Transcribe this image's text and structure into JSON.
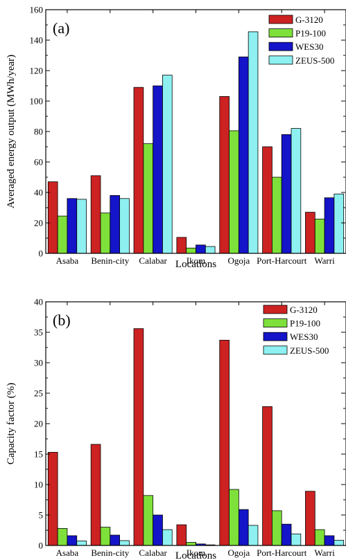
{
  "chart_data": [
    {
      "type": "bar",
      "panel_label": "(a)",
      "categories": [
        "Asaba",
        "Benin-city",
        "Calabar",
        "Ikom",
        "Ogoja",
        "Port-Harcourt",
        "Warri"
      ],
      "series": [
        {
          "name": "G-3120",
          "color": "#cc2222",
          "values": [
            47,
            51,
            109,
            10.5,
            103,
            70,
            27
          ]
        },
        {
          "name": "P19-100",
          "color": "#7ee03a",
          "values": [
            24.5,
            26.5,
            72,
            3.5,
            80.5,
            50,
            22.5
          ]
        },
        {
          "name": "WES30",
          "color": "#1414c8",
          "values": [
            36,
            38,
            110,
            5.5,
            129,
            78,
            36.5
          ]
        },
        {
          "name": "ZEUS-500",
          "color": "#8ef0f0",
          "values": [
            35.5,
            36,
            117,
            4.5,
            145.5,
            82,
            39
          ]
        }
      ],
      "xlabel": "Locations",
      "ylabel": "Averaged energy output (MWh/year)",
      "ylim": [
        0,
        160
      ],
      "yticks": [
        0,
        20,
        40,
        60,
        80,
        100,
        120,
        140,
        160
      ],
      "legend_position": "top-right",
      "grid": false
    },
    {
      "type": "bar",
      "panel_label": "(b)",
      "categories": [
        "Asaba",
        "Benin-city",
        "Calabar",
        "Ikom",
        "Ogoja",
        "Port-Harcourt",
        "Warri"
      ],
      "series": [
        {
          "name": "G-3120",
          "color": "#cc2222",
          "values": [
            15.3,
            16.6,
            35.6,
            3.4,
            33.7,
            22.8,
            8.9
          ]
        },
        {
          "name": "P19-100",
          "color": "#7ee03a",
          "values": [
            2.8,
            3.0,
            8.2,
            0.5,
            9.2,
            5.7,
            2.6
          ]
        },
        {
          "name": "WES30",
          "color": "#1414c8",
          "values": [
            1.6,
            1.7,
            5.0,
            0.25,
            5.9,
            3.5,
            1.6
          ]
        },
        {
          "name": "ZEUS-500",
          "color": "#8ef0f0",
          "values": [
            0.75,
            0.8,
            2.6,
            0.1,
            3.3,
            1.9,
            0.85
          ]
        }
      ],
      "xlabel": "Locations",
      "ylabel": "Capacity factor (%)",
      "ylim": [
        0,
        40
      ],
      "yticks": [
        0,
        5,
        10,
        15,
        20,
        25,
        30,
        35,
        40
      ],
      "legend_position": "top-right",
      "grid": false
    }
  ]
}
